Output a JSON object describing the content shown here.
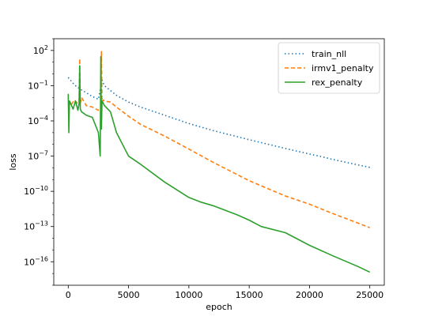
{
  "chart_data": {
    "type": "line",
    "xlabel": "epoch",
    "ylabel": "loss",
    "yscale": "log",
    "xlim": [
      -1200,
      26200
    ],
    "ylim": [
      1e-18,
      1000
    ],
    "xticks": [
      0,
      5000,
      10000,
      15000,
      20000,
      25000
    ],
    "xtick_labels": [
      "0",
      "5000",
      "10000",
      "15000",
      "20000",
      "25000"
    ],
    "yticks": [
      {
        "value": 100.0,
        "base": "10",
        "exp": "2"
      },
      {
        "value": 0.1,
        "base": "10",
        "exp": "−1"
      },
      {
        "value": 0.0001,
        "base": "10",
        "exp": "−4"
      },
      {
        "value": 1e-07,
        "base": "10",
        "exp": "−7"
      },
      {
        "value": 1e-10,
        "base": "10",
        "exp": "−10"
      },
      {
        "value": 1e-13,
        "base": "10",
        "exp": "−13"
      },
      {
        "value": 1e-16,
        "base": "10",
        "exp": "−16"
      }
    ],
    "legend_position": "top-right",
    "grid": false,
    "series": [
      {
        "name": "train_nll",
        "color": "#1f77b4",
        "style": "dotted",
        "x": [
          0,
          500,
          1000,
          1500,
          2000,
          2500,
          2800,
          3000,
          4000,
          5000,
          6000,
          8000,
          10000,
          12000,
          15000,
          18000,
          20000,
          21000,
          22000,
          23000,
          24000,
          25000
        ],
        "y": [
          0.5,
          0.12,
          0.05,
          0.025,
          0.012,
          0.007,
          0.3,
          0.1,
          0.015,
          0.004,
          0.0015,
          0.0003,
          6e-05,
          1.5e-05,
          2.5e-06,
          4.5e-07,
          1.5e-07,
          9e-08,
          5e-08,
          3e-08,
          1.8e-08,
          1.1e-08
        ]
      },
      {
        "name": "irmv1_penalty",
        "color": "#ff7f0e",
        "style": "dashed",
        "x": [
          0,
          200,
          500,
          800,
          900,
          950,
          1000,
          1100,
          1500,
          2000,
          2500,
          2700,
          2750,
          2800,
          2900,
          3000,
          3500,
          4000,
          5000,
          6000,
          8000,
          10000,
          12000,
          15000,
          18000,
          20000,
          22000,
          24000,
          25000
        ],
        "y": [
          0.005,
          0.002,
          0.006,
          0.003,
          0.004,
          20,
          0.003,
          0.01,
          0.002,
          0.0015,
          0.0008,
          0.001,
          80,
          0.004,
          0.006,
          0.005,
          0.004,
          0.0015,
          0.00025,
          5e-05,
          5e-06,
          4e-07,
          3e-08,
          8e-10,
          4e-11,
          8e-12,
          1.2e-12,
          2e-13,
          8e-14
        ]
      },
      {
        "name": "rex_penalty",
        "color": "#2ca02c",
        "style": "solid",
        "x": [
          0,
          50,
          100,
          200,
          400,
          600,
          800,
          900,
          950,
          1000,
          1100,
          1500,
          2000,
          2500,
          2650,
          2700,
          2750,
          2800,
          3000,
          3500,
          4000,
          5000,
          6000,
          8000,
          10000,
          11000,
          12000,
          14000,
          15000,
          16000,
          18000,
          20000,
          22000,
          24000,
          25000
        ],
        "y": [
          0.02,
          1e-05,
          0.005,
          0.003,
          0.001,
          0.005,
          0.0008,
          0.003,
          5,
          0.001,
          0.0006,
          0.0003,
          0.0002,
          1e-05,
          1e-07,
          30,
          2e-05,
          0.005,
          0.002,
          0.0006,
          1e-05,
          1e-07,
          2e-08,
          6e-10,
          3e-11,
          1.2e-11,
          6e-12,
          1e-12,
          3.5e-13,
          1e-13,
          3e-14,
          2.5e-15,
          3e-16,
          4e-17,
          1.3e-17
        ]
      }
    ]
  }
}
